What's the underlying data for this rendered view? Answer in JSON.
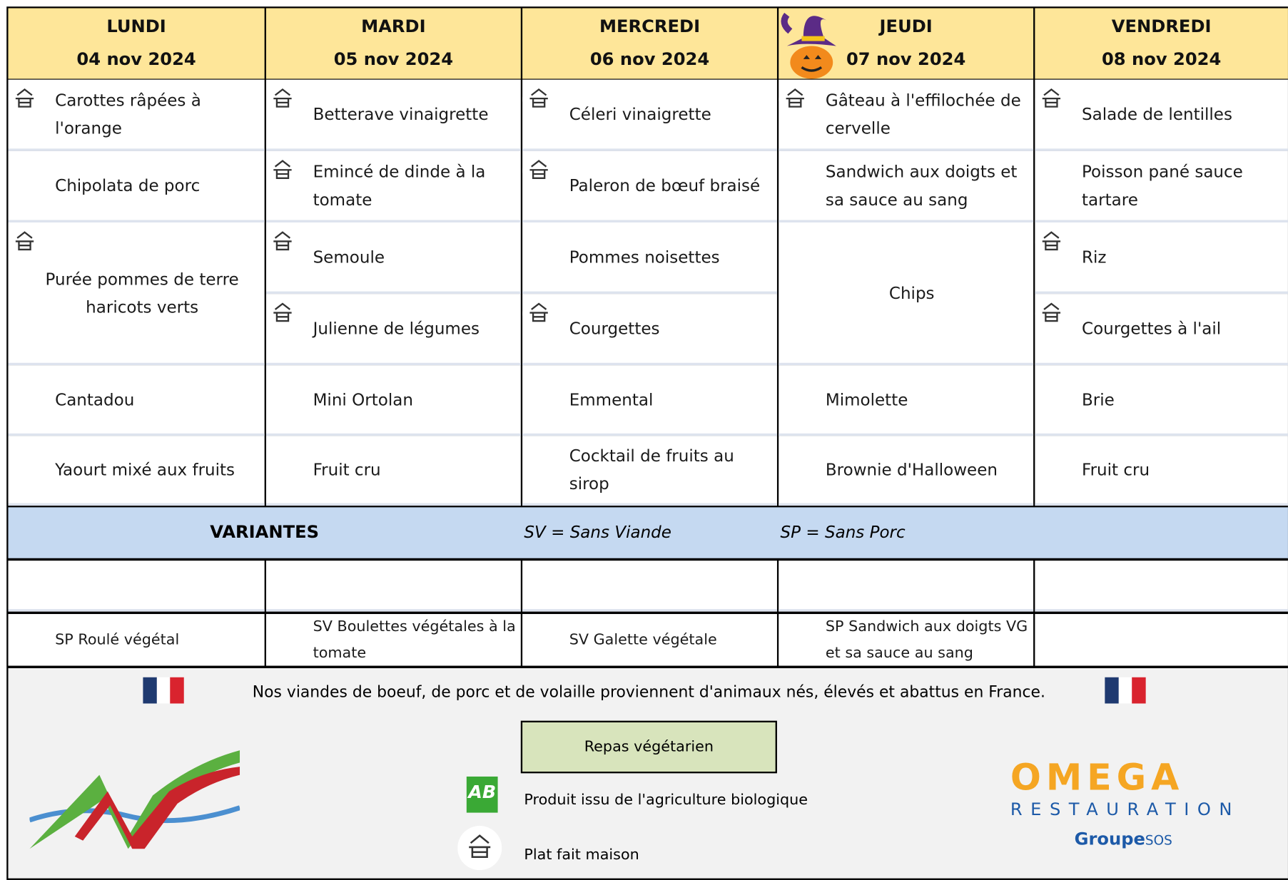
{
  "days": [
    {
      "name": "LUNDI",
      "date": "04 nov 2024",
      "dishes": [
        {
          "text": "Carottes râpées à l'orange",
          "homemade": true
        },
        {
          "text": "Chipolata de porc",
          "homemade": false
        },
        {
          "text": "Purée pommes de terre haricots verts",
          "homemade": true
        },
        {
          "text": "Cantadou",
          "homemade": false
        },
        {
          "text": "Yaourt mixé aux fruits",
          "homemade": false
        }
      ],
      "variant": "SP Roulé végétal"
    },
    {
      "name": "MARDI",
      "date": "05 nov 2024",
      "dishes": [
        {
          "text": "Betterave vinaigrette",
          "homemade": true
        },
        {
          "text": "Emincé de dinde à la tomate",
          "homemade": true
        },
        {
          "text": "Semoule",
          "homemade": true
        },
        {
          "text": "Julienne de légumes",
          "homemade": true
        },
        {
          "text": "Mini Ortolan",
          "homemade": false
        },
        {
          "text": "Fruit cru",
          "homemade": false
        }
      ],
      "variant": "SV Boulettes végétales à la tomate"
    },
    {
      "name": "MERCREDI",
      "date": "06 nov 2024",
      "dishes": [
        {
          "text": "Céleri vinaigrette",
          "homemade": true
        },
        {
          "text": "Paleron de bœuf braisé",
          "homemade": true
        },
        {
          "text": "Pommes noisettes",
          "homemade": false
        },
        {
          "text": "Courgettes",
          "homemade": true
        },
        {
          "text": "Emmental",
          "homemade": false
        },
        {
          "text": "Cocktail de fruits au sirop",
          "homemade": false
        }
      ],
      "variant": "SV Galette végétale"
    },
    {
      "name": "JEUDI",
      "date": "07 nov 2024",
      "dishes": [
        {
          "text": "Gâteau à l'effilochée de cervelle",
          "homemade": true
        },
        {
          "text": "Sandwich aux doigts et sa sauce au sang",
          "homemade": false
        },
        {
          "text": "Chips",
          "homemade": false
        },
        {
          "text": "Mimolette",
          "homemade": false
        },
        {
          "text": "Brownie d'Halloween",
          "homemade": false
        }
      ],
      "variant": "SP Sandwich aux doigts VG et sa sauce au sang"
    },
    {
      "name": "VENDREDI",
      "date": "08 nov 2024",
      "dishes": [
        {
          "text": "Salade de lentilles",
          "homemade": true
        },
        {
          "text": "Poisson pané sauce tartare",
          "homemade": false
        },
        {
          "text": "Riz",
          "homemade": true
        },
        {
          "text": "Courgettes à l'ail",
          "homemade": true
        },
        {
          "text": "Brie",
          "homemade": false
        },
        {
          "text": "Fruit cru",
          "homemade": false
        }
      ],
      "variant": null
    }
  ],
  "variants_header": {
    "title": "VARIANTES",
    "sv": "SV = Sans Viande",
    "sp": "SP = Sans Porc"
  },
  "footer": {
    "origin_note": "Nos viandes de boeuf, de porc et de volaille proviennent d'animaux nés, élevés et abattus en France.",
    "vegetarian": "Repas végétarien",
    "organic_logo": "AB",
    "organic": "Produit issu de l'agriculture biologique",
    "homemade": "Plat fait maison",
    "brand": "OMEGA",
    "brand_sub": "RESTAURATION",
    "group": "Groupe",
    "group_suffix": "SOS"
  }
}
